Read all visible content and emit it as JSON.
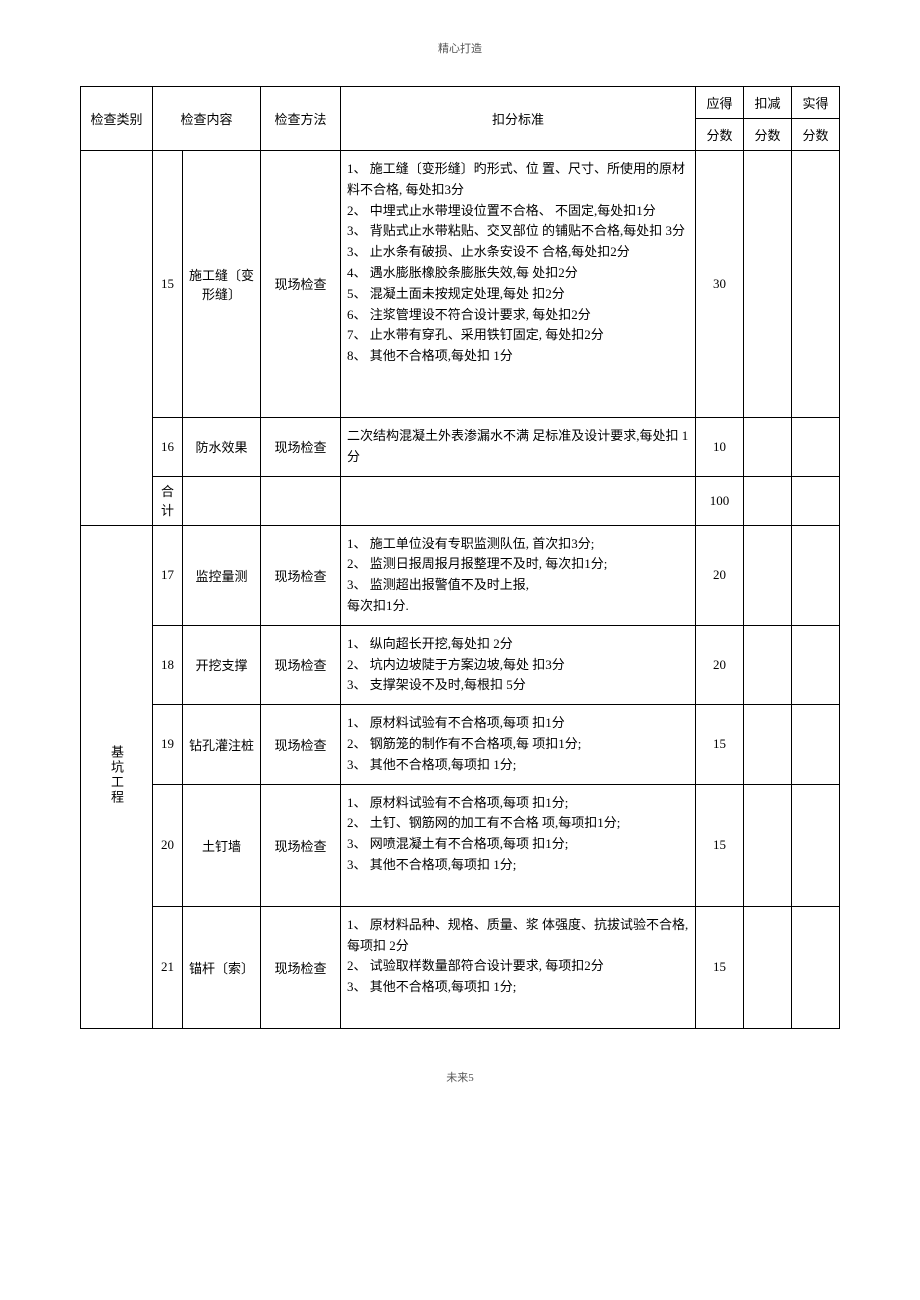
{
  "page": {
    "header": "精心打造",
    "footer_prefix": "未来",
    "footer_page": "5"
  },
  "table": {
    "headers": {
      "category": "检查类别",
      "content": "检查内容",
      "method": "检查方法",
      "criteria": "扣分标准",
      "should_score_top": "应得",
      "deduct_score_top": "扣减",
      "actual_score_top": "实得",
      "score_bottom": "分数"
    },
    "rows": [
      {
        "idx": "15",
        "content": "施工缝〔变形缝〕",
        "method": "现场检查",
        "criteria": "1、 施工缝〔变形缝〕旳形式、位 置、尺寸、所使用的原材料不合格, 每处扣3分\n2、 中埋式止水带埋设位置不合格、 不固定,每处扣1分\n3、 背贴式止水带粘贴、交叉部位 的铺贴不合格,每处扣 3分\n3、 止水条有破损、止水条安设不 合格,每处扣2分\n4、 遇水膨胀橡胶条膨胀失效,每 处扣2分\n5、 混凝土面未按规定处理,每处 扣2分\n6、 注浆管埋设不符合设计要求, 每处扣2分\n7、 止水带有穿孔、采用铁钉固定, 每处扣2分\n8、 其他不合格项,每处扣 1分",
        "score": "30"
      },
      {
        "idx": "16",
        "content": "防水效果",
        "method": "现场检查",
        "criteria": "二次结构混凝土外表渗漏水不满 足标准及设计要求,每处扣 1分",
        "score": "10"
      },
      {
        "idx": "合计",
        "content": "",
        "method": "",
        "criteria": "",
        "score": "100",
        "is_total": true
      },
      {
        "idx": "17",
        "content": "监控量测",
        "method": "现场检查",
        "criteria": "1、 施工单位没有专职监测队伍, 首次扣3分;\n2、    监测日报周报月报整理不及时, 每次扣1分;\n3、 监测超出报警值不及时上报,\n每次扣1分.",
        "score": "20"
      },
      {
        "idx": "18",
        "content": "开挖支撑",
        "method": "现场检查",
        "criteria": "1、 纵向超长开挖,每处扣 2分\n2、 坑内边坡陡于方案边坡,每处 扣3分\n3、 支撑架设不及时,每根扣 5分",
        "score": "20"
      },
      {
        "idx": "19",
        "content": "钻孔灌注桩",
        "method": "现场检查",
        "criteria": "1、 原材料试验有不合格项,每项 扣1分\n2、 钢筋笼的制作有不合格项,每 项扣1分;\n3、 其他不合格项,每项扣 1分;",
        "score": "15"
      },
      {
        "idx": "20",
        "content": "土钉墙",
        "method": "现场检查",
        "criteria": "1、 原材料试验有不合格项,每项 扣1分;\n2、 土钉、钢筋网的加工有不合格 项,每项扣1分;\n3、 网喷混凝土有不合格项,每项 扣1分;\n3、 其他不合格项,每项扣 1分;",
        "score": "15"
      },
      {
        "idx": "21",
        "content": "锚杆〔索〕",
        "method": "现场检查",
        "criteria": "1、 原材料品种、规格、质量、浆 体强度、抗拔试验不合格,每项扣 2分\n2、    试验取样数量部符合设计要求, 每项扣2分\n3、 其他不合格项,每项扣 1分;",
        "score": "15"
      }
    ],
    "category_label": "基坑工程"
  }
}
